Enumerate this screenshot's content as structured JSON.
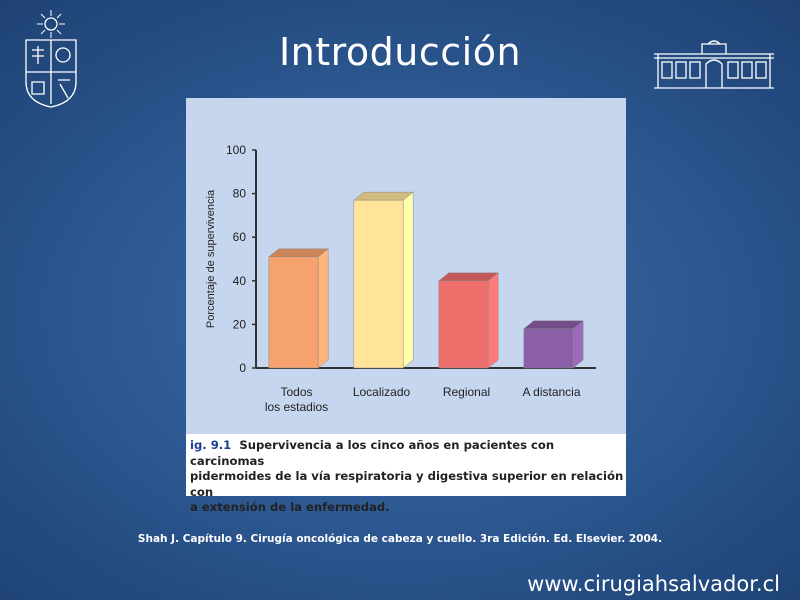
{
  "slide": {
    "title": "Introducción",
    "citation": "Shah J. Capítulo 9. Cirugía oncológica de cabeza y cuello.  3ra Edición. Ed. Elsevier.  2004.",
    "website": "www.cirugiahsalvador.cl"
  },
  "logos": {
    "left": "university-crest-icon",
    "right": "hospital-building-icon"
  },
  "caption": {
    "prefix": "ig. 9.1",
    "line1": "Supervivencia a los cinco años en pacientes con carcinomas",
    "line2": "pidermoides de la vía respiratoria y digestiva superior en relación con",
    "line3": "a extensión de la enfermedad."
  },
  "chart_data": {
    "type": "bar",
    "categories": [
      [
        "Todos",
        "los estadios"
      ],
      [
        "Localizado"
      ],
      [
        "Regional"
      ],
      [
        "A distancia"
      ]
    ],
    "values": [
      51,
      77,
      40,
      18
    ],
    "colors": [
      "#f6a26e",
      "#ffe49a",
      "#ee6e6c",
      "#8a5fa8"
    ],
    "ylabel": "Porcentaje de supervivencia",
    "ylim": [
      0,
      100
    ],
    "yticks": [
      0,
      20,
      40,
      60,
      80,
      100
    ],
    "grid": false
  }
}
